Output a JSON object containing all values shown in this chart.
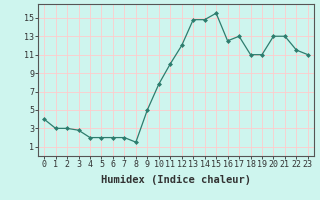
{
  "x": [
    0,
    1,
    2,
    3,
    4,
    5,
    6,
    7,
    8,
    9,
    10,
    11,
    12,
    13,
    14,
    15,
    16,
    17,
    18,
    19,
    20,
    21,
    22,
    23
  ],
  "y": [
    4,
    3,
    3,
    2.8,
    2,
    2,
    2,
    2,
    1.5,
    5,
    7.8,
    10,
    12,
    14.8,
    14.8,
    15.5,
    12.5,
    13,
    11,
    11,
    13,
    13,
    11.5,
    11
  ],
  "line_color": "#2d7d6e",
  "marker": "D",
  "marker_size": 2.0,
  "bg_color": "#cef5ee",
  "grid_color": "#ffcccc",
  "xlabel": "Humidex (Indice chaleur)",
  "ylabel": "",
  "xlim": [
    -0.5,
    23.5
  ],
  "ylim": [
    0,
    16.5
  ],
  "yticks": [
    1,
    3,
    5,
    7,
    9,
    11,
    13,
    15
  ],
  "xticks": [
    0,
    1,
    2,
    3,
    4,
    5,
    6,
    7,
    8,
    9,
    10,
    11,
    12,
    13,
    14,
    15,
    16,
    17,
    18,
    19,
    20,
    21,
    22,
    23
  ],
  "xtick_labels": [
    "0",
    "1",
    "2",
    "3",
    "4",
    "5",
    "6",
    "7",
    "8",
    "9",
    "10",
    "11",
    "12",
    "13",
    "14",
    "15",
    "16",
    "17",
    "18",
    "19",
    "20",
    "21",
    "22",
    "23"
  ],
  "tick_color": "#333333",
  "axis_color": "#555555",
  "font_size": 6,
  "xlabel_fontsize": 7.5
}
